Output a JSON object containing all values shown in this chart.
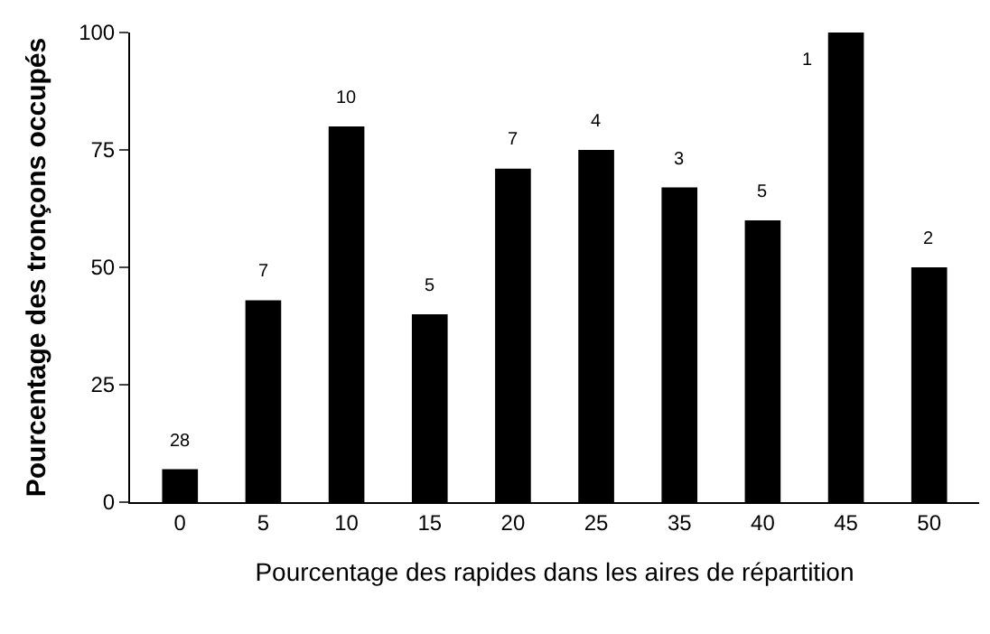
{
  "chart_data": {
    "type": "bar",
    "xlabel": "Pourcentage des rapides dans les aires de répartition",
    "ylabel": "Pourcentage des tronçons occupés",
    "categories": [
      "0",
      "5",
      "10",
      "15",
      "20",
      "25",
      "35",
      "40",
      "45",
      "50"
    ],
    "values": [
      7,
      43,
      80,
      40,
      71,
      75,
      67,
      60,
      100,
      50
    ],
    "color": "#000000",
    "ylim": [
      0,
      100
    ],
    "yticks": [
      0,
      25,
      50,
      75,
      100
    ],
    "annotations": [
      {
        "text": "28",
        "x": "0",
        "y": 7
      },
      {
        "text": "7",
        "x": "5",
        "y": 43
      },
      {
        "text": "10",
        "x": "10",
        "y": 80
      },
      {
        "text": "5",
        "x": "15",
        "y": 40
      },
      {
        "text": "7",
        "x": "20",
        "y": 71
      },
      {
        "text": "4",
        "x": "25",
        "y": 75
      },
      {
        "text": "3",
        "x": "35",
        "y": 67
      },
      {
        "text": "5",
        "x": "40",
        "y": 60
      },
      {
        "text": "1",
        "x": "45",
        "y": 100
      },
      {
        "text": "2",
        "x": "50",
        "y": 50
      }
    ]
  }
}
